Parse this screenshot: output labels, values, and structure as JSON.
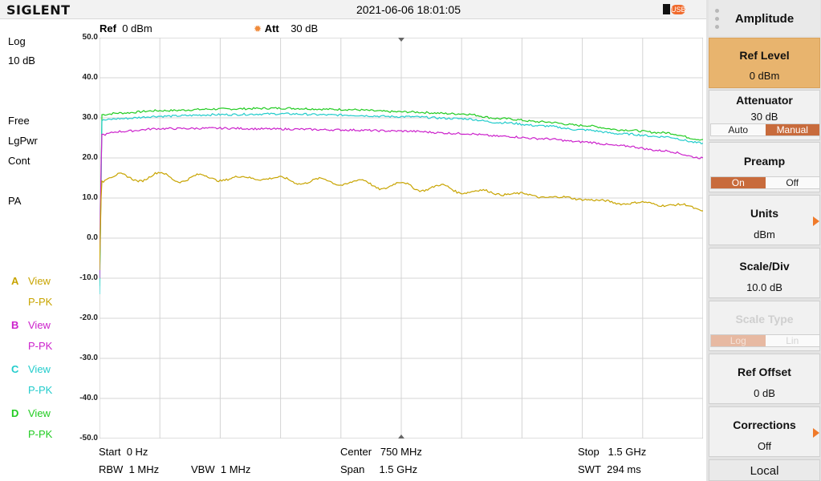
{
  "header": {
    "brand": "SIGLENT",
    "datetime": "2021-06-06 18:01:05",
    "usb_label": "USB",
    "ref_label": "Ref",
    "ref_value": "0 dBm",
    "att_label": "Att",
    "att_value": "30 dB"
  },
  "left_panel": {
    "scale_mode": "Log",
    "scale_div": "10 dB",
    "trigger": "Free",
    "avg_type": "LgPwr",
    "sweep_mode": "Cont",
    "preamp": "PA"
  },
  "traces": [
    {
      "letter": "A",
      "state": "View",
      "detector": "P-PK",
      "color": "#c8a400"
    },
    {
      "letter": "B",
      "state": "View",
      "detector": "P-PK",
      "color": "#cc22cc"
    },
    {
      "letter": "C",
      "state": "View",
      "detector": "P-PK",
      "color": "#22cccc"
    },
    {
      "letter": "D",
      "state": "View",
      "detector": "P-PK",
      "color": "#22cc22"
    }
  ],
  "bottom": {
    "start_label": "Start",
    "start_value": "0 Hz",
    "center_label": "Center",
    "center_value": "750 MHz",
    "stop_label": "Stop",
    "stop_value": "1.5 GHz",
    "rbw_label": "RBW",
    "rbw_value": "1 MHz",
    "vbw_label": "VBW",
    "vbw_value": "1 MHz",
    "span_label": "Span",
    "span_value": "1.5 GHz",
    "swt_label": "SWT",
    "swt_value": "294 ms"
  },
  "softkeys": {
    "menu_title": "Amplitude",
    "ref_level": {
      "label": "Ref Level",
      "value": "0 dBm"
    },
    "attenuator": {
      "label": "Attenuator",
      "value": "30 dB",
      "opt_a": "Auto",
      "opt_b": "Manual"
    },
    "preamp": {
      "label": "Preamp",
      "opt_a": "On",
      "opt_b": "Off"
    },
    "units": {
      "label": "Units",
      "value": "dBm"
    },
    "scale_div": {
      "label": "Scale/Div",
      "value": "10.0 dB"
    },
    "scale_type": {
      "label": "Scale Type",
      "opt_a": "Log",
      "opt_b": "Lin"
    },
    "ref_offset": {
      "label": "Ref Offset",
      "value": "0 dB"
    },
    "corrections": {
      "label": "Corrections",
      "value": "Off"
    },
    "local": "Local"
  },
  "chart_data": {
    "type": "line",
    "y_tick_labels": [
      "50.0",
      "40.0",
      "30.0",
      "20.0",
      "10.0",
      "0.0",
      "-10.0",
      "-20.0",
      "-30.0",
      "-40.0",
      "-50.0"
    ],
    "ylim": [
      -50,
      50
    ],
    "xlim_mhz": [
      0,
      1500
    ],
    "grid": true,
    "series": [
      {
        "name": "D",
        "color": "#22cc22",
        "x": [
          0,
          4,
          6,
          50,
          150,
          300,
          450,
          600,
          750,
          900,
          1000,
          1100,
          1200,
          1300,
          1400,
          1500
        ],
        "y": [
          -12,
          15,
          30.8,
          31.2,
          31.8,
          32.2,
          32.4,
          32.1,
          31.5,
          31.0,
          29.8,
          29.0,
          28.1,
          27.0,
          26.3,
          24.6
        ]
      },
      {
        "name": "C",
        "color": "#22cccc",
        "x": [
          0,
          4,
          6,
          50,
          150,
          300,
          450,
          600,
          750,
          900,
          1000,
          1100,
          1200,
          1300,
          1400,
          1500
        ],
        "y": [
          -14,
          14,
          29.4,
          29.8,
          30.4,
          30.8,
          31.0,
          30.7,
          30.3,
          29.8,
          28.8,
          28.0,
          27.0,
          26.0,
          25.3,
          23.7
        ]
      },
      {
        "name": "B",
        "color": "#cc22cc",
        "x": [
          0,
          4,
          6,
          50,
          150,
          300,
          450,
          600,
          750,
          900,
          1000,
          1100,
          1200,
          1300,
          1400,
          1500
        ],
        "y": [
          -10,
          18,
          25.8,
          26.6,
          27.3,
          27.4,
          27.2,
          27.0,
          26.7,
          26.1,
          25.4,
          24.8,
          24.0,
          23.0,
          21.8,
          20.0
        ]
      },
      {
        "name": "A",
        "color": "#c8a400",
        "x": [
          0,
          4,
          6,
          25,
          50,
          100,
          150,
          200,
          250,
          300,
          350,
          400,
          450,
          500,
          550,
          600,
          650,
          700,
          750,
          800,
          850,
          900,
          950,
          1000,
          1050,
          1100,
          1150,
          1200,
          1250,
          1300,
          1350,
          1400,
          1450,
          1500
        ],
        "y": [
          -8,
          10,
          14.0,
          15.2,
          16.0,
          14.2,
          16.4,
          14.0,
          15.9,
          14.3,
          15.4,
          14.6,
          15.2,
          13.5,
          14.9,
          13.2,
          14.6,
          12.2,
          14.0,
          11.8,
          13.3,
          11.2,
          12.0,
          10.8,
          11.2,
          10.1,
          10.3,
          9.6,
          9.4,
          8.5,
          9.0,
          8.1,
          8.4,
          6.8
        ]
      }
    ]
  }
}
